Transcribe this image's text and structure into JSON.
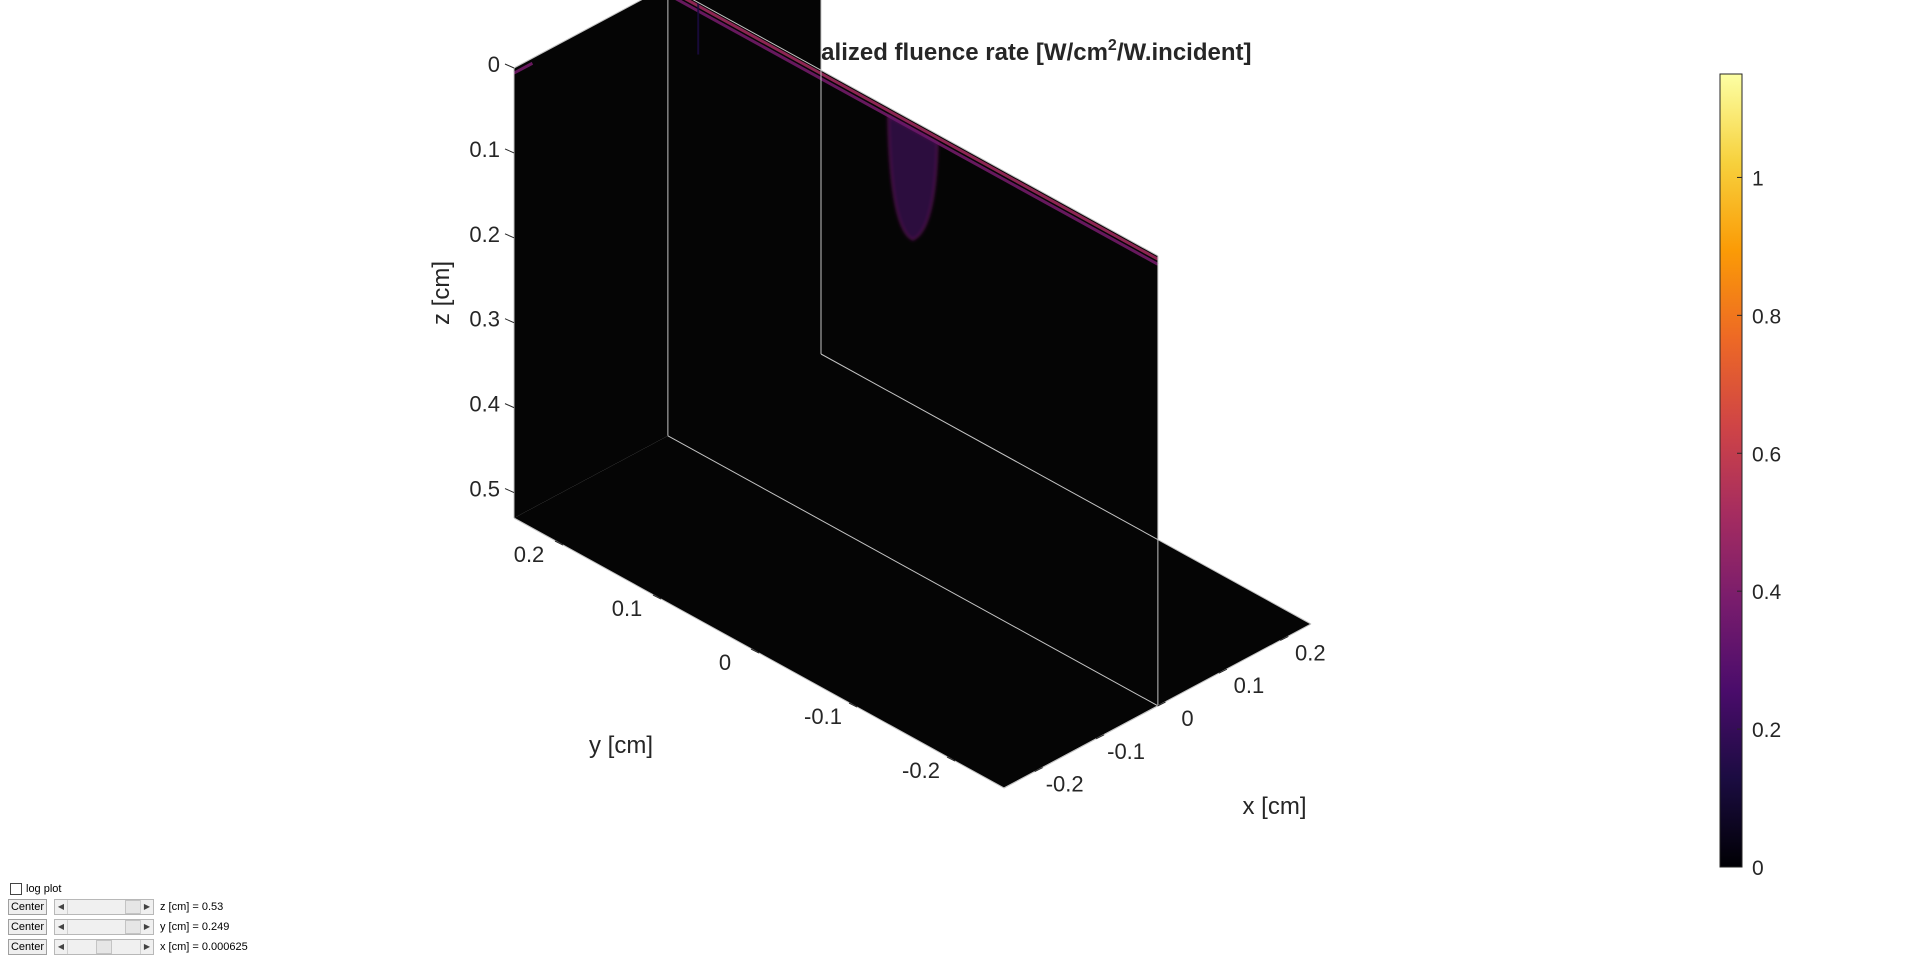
{
  "chart_data": {
    "type": "volume-slice",
    "title": "Normalized fluence rate [W/cm",
    "title_sup": "2",
    "title_suffix": "/W.incident]",
    "xlabel": "x [cm]",
    "ylabel": "y [cm]",
    "zlabel": "z [cm]",
    "xlim": [
      -0.25,
      0.25
    ],
    "ylim": [
      -0.25,
      0.25
    ],
    "zlim": [
      0,
      0.53
    ],
    "z_reversed": true,
    "x_ticks": [
      {
        "value": -0.2,
        "label": "-0.2"
      },
      {
        "value": -0.1,
        "label": "-0.1"
      },
      {
        "value": 0,
        "label": "0"
      },
      {
        "value": 0.1,
        "label": "0.1"
      },
      {
        "value": 0.2,
        "label": "0.2"
      }
    ],
    "y_ticks": [
      {
        "value": -0.2,
        "label": "-0.2"
      },
      {
        "value": -0.1,
        "label": "-0.1"
      },
      {
        "value": 0,
        "label": "0"
      },
      {
        "value": 0.1,
        "label": "0.1"
      },
      {
        "value": 0.2,
        "label": "0.2"
      }
    ],
    "z_ticks": [
      {
        "value": 0,
        "label": "0"
      },
      {
        "value": 0.1,
        "label": "0.1"
      },
      {
        "value": 0.2,
        "label": "0.2"
      },
      {
        "value": 0.3,
        "label": "0.3"
      },
      {
        "value": 0.4,
        "label": "0.4"
      },
      {
        "value": 0.5,
        "label": "0.5"
      }
    ],
    "slices": {
      "x": 0.000625,
      "y": 0.249,
      "z": 0.53
    },
    "colormap": "inferno",
    "colormap_stops": [
      "#000004",
      "#1b0c41",
      "#4a0c6b",
      "#781c6d",
      "#a52c60",
      "#cf4446",
      "#ed6925",
      "#fb9b06",
      "#f7d13d",
      "#fcffa4"
    ],
    "background_color": "#050505",
    "edge_color": "#c4c4c4",
    "colorbar": {
      "range": [
        0,
        1.15
      ],
      "ticks": [
        {
          "value": 0,
          "label": "0"
        },
        {
          "value": 0.2,
          "label": "0.2"
        },
        {
          "value": 0.4,
          "label": "0.4"
        },
        {
          "value": 0.6,
          "label": "0.6"
        },
        {
          "value": 0.8,
          "label": "0.8"
        },
        {
          "value": 1,
          "label": "1"
        }
      ]
    }
  },
  "controls": {
    "log_plot_label": "log plot",
    "log_plot_checked": false,
    "rows": [
      {
        "button_label": "Center",
        "value_text": "z [cm] = 0.53",
        "slider_fraction": 1.0
      },
      {
        "button_label": "Center",
        "value_text": "y [cm] = 0.249",
        "slider_fraction": 0.998
      },
      {
        "button_label": "Center",
        "value_text": "x [cm] = 0.000625",
        "slider_fraction": 0.5
      }
    ]
  }
}
